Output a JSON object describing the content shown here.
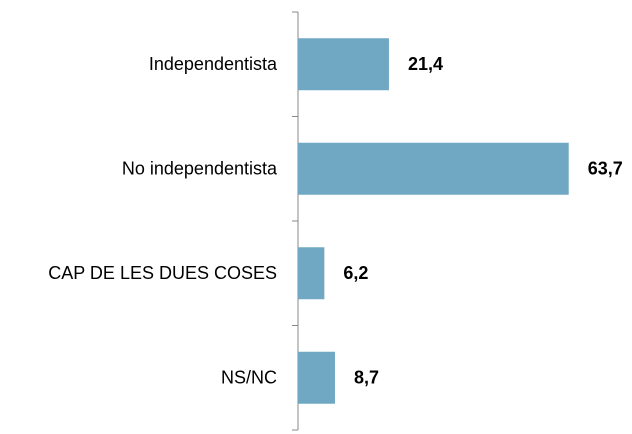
{
  "chart_data": {
    "type": "hbar",
    "categories": [
      "Independentista",
      "No independentista",
      "CAP DE LES DUES COSES",
      "NS/NC"
    ],
    "values": [
      21.4,
      63.7,
      6.2,
      8.7
    ],
    "value_labels": [
      "21,4",
      "63,7",
      "6,2",
      "8,7"
    ],
    "color": "#70a8c3"
  }
}
